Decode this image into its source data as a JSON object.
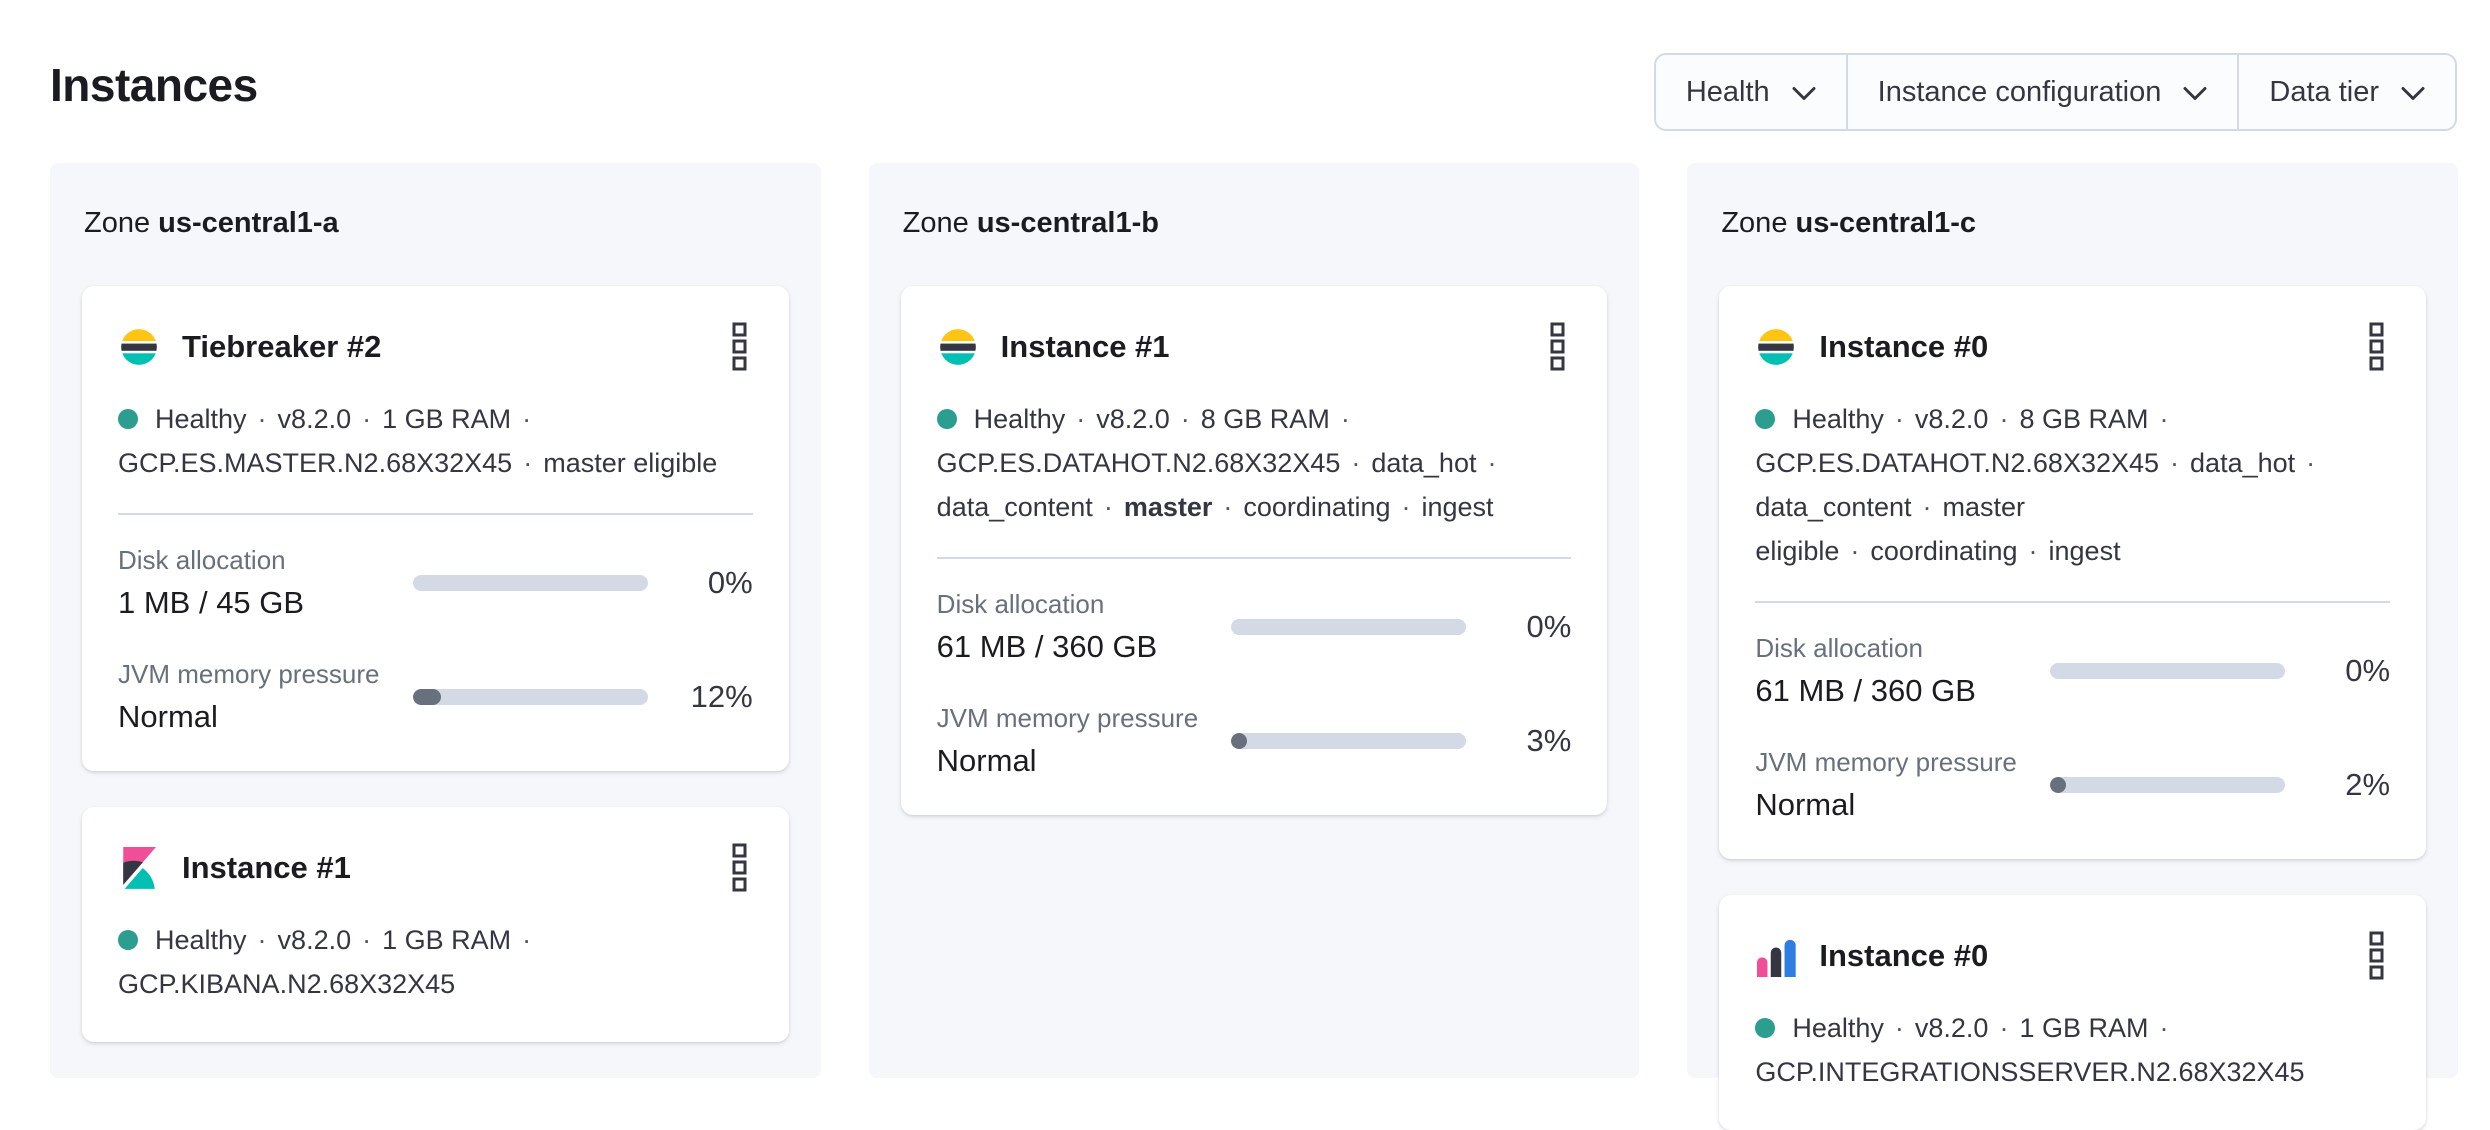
{
  "page": {
    "title": "Instances"
  },
  "filter_bar": {
    "items": [
      {
        "label": "Health"
      },
      {
        "label": "Instance configuration"
      },
      {
        "label": "Data tier"
      }
    ]
  },
  "separator": "·",
  "colors": {
    "health_dot": "#2b9e8f",
    "progress_track": "#d3dae6",
    "progress_fill": "#69707d",
    "elastic_yellow": "#FEC514",
    "elastic_dark": "#343741",
    "elastic_teal": "#00BFB3",
    "elastic_pink": "#F04E98",
    "elastic_blue": "#2F7DE1"
  },
  "icons": {
    "card_menu": "boxes-vertical-icon",
    "filter_chevron": "chevron-down-icon"
  },
  "zones": [
    {
      "label": "Zone",
      "name": "us-central1-a",
      "cards": [
        {
          "logo": "elasticsearch-logo",
          "title": "Tiebreaker #2",
          "meta": [
            {
              "health_dot": true,
              "tokens": [
                {
                  "text": "Healthy"
                },
                {
                  "text": "v8.2.0"
                },
                {
                  "text": "1 GB RAM"
                }
              ],
              "trailing_separator": true
            },
            {
              "tokens": [
                {
                  "text": "GCP.ES.MASTER.N2.68X32X45"
                },
                {
                  "text": "master eligible"
                }
              ]
            }
          ],
          "stats": [
            {
              "label": "Disk allocation",
              "value": "1 MB / 45 GB",
              "percent": "0%",
              "fill_pct": 0
            },
            {
              "label": "JVM memory pressure",
              "value": "Normal",
              "percent": "12%",
              "fill_pct": 12
            }
          ]
        },
        {
          "logo": "kibana-logo",
          "title": "Instance #1",
          "meta": [
            {
              "health_dot": true,
              "tokens": [
                {
                  "text": "Healthy"
                },
                {
                  "text": "v8.2.0"
                },
                {
                  "text": "1 GB RAM"
                }
              ],
              "trailing_separator": true
            },
            {
              "tokens": [
                {
                  "text": "GCP.KIBANA.N2.68X32X45"
                }
              ]
            }
          ],
          "stats": []
        }
      ]
    },
    {
      "label": "Zone",
      "name": "us-central1-b",
      "cards": [
        {
          "logo": "elasticsearch-logo",
          "title": "Instance #1",
          "meta": [
            {
              "health_dot": true,
              "tokens": [
                {
                  "text": "Healthy"
                },
                {
                  "text": "v8.2.0"
                },
                {
                  "text": "8 GB RAM"
                }
              ],
              "trailing_separator": true
            },
            {
              "tokens": [
                {
                  "text": "GCP.ES.DATAHOT.N2.68X32X45"
                },
                {
                  "text": "data_hot"
                }
              ],
              "trailing_separator": true
            },
            {
              "tokens": [
                {
                  "text": "data_content"
                },
                {
                  "text": "master",
                  "bold": true
                },
                {
                  "text": "coordinating"
                },
                {
                  "text": "ingest"
                }
              ]
            }
          ],
          "stats": [
            {
              "label": "Disk allocation",
              "value": "61 MB / 360 GB",
              "percent": "0%",
              "fill_pct": 0
            },
            {
              "label": "JVM memory pressure",
              "value": "Normal",
              "percent": "3%",
              "fill_pct": 3
            }
          ]
        }
      ]
    },
    {
      "label": "Zone",
      "name": "us-central1-c",
      "cards": [
        {
          "logo": "elasticsearch-logo",
          "title": "Instance #0",
          "meta": [
            {
              "health_dot": true,
              "tokens": [
                {
                  "text": "Healthy"
                },
                {
                  "text": "v8.2.0"
                },
                {
                  "text": "8 GB RAM"
                }
              ],
              "trailing_separator": true
            },
            {
              "tokens": [
                {
                  "text": "GCP.ES.DATAHOT.N2.68X32X45"
                },
                {
                  "text": "data_hot"
                }
              ],
              "trailing_separator": true
            },
            {
              "tokens": [
                {
                  "text": "data_content"
                },
                {
                  "text": "master eligible"
                },
                {
                  "text": "coordinating"
                },
                {
                  "text": "ingest"
                }
              ]
            }
          ],
          "stats": [
            {
              "label": "Disk allocation",
              "value": "61 MB / 360 GB",
              "percent": "0%",
              "fill_pct": 0
            },
            {
              "label": "JVM memory pressure",
              "value": "Normal",
              "percent": "2%",
              "fill_pct": 2
            }
          ]
        },
        {
          "logo": "integrations-server-logo",
          "title": "Instance #0",
          "meta": [
            {
              "health_dot": true,
              "tokens": [
                {
                  "text": "Healthy"
                },
                {
                  "text": "v8.2.0"
                },
                {
                  "text": "1 GB RAM"
                }
              ],
              "trailing_separator": true
            },
            {
              "tokens": [
                {
                  "text": "GCP.INTEGRATIONSSERVER.N2.68X32X45"
                }
              ]
            }
          ],
          "stats": []
        }
      ]
    }
  ]
}
